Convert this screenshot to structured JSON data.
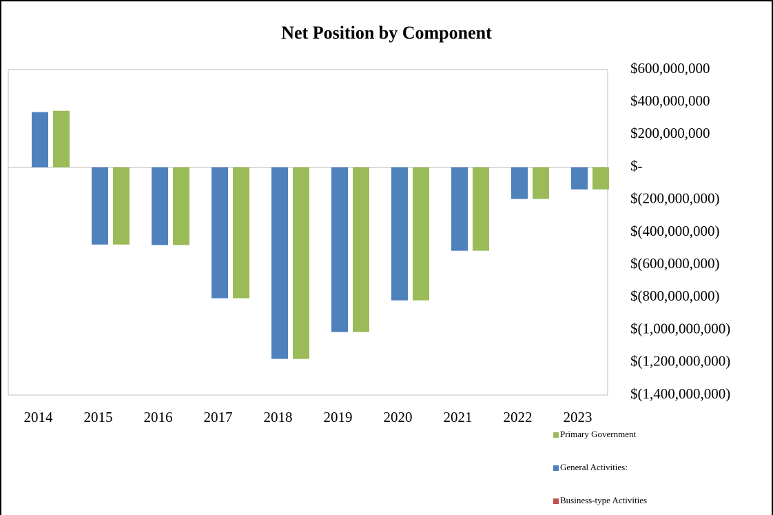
{
  "chart_data": {
    "type": "bar",
    "title": "Net Position by Component",
    "categories": [
      "2014",
      "2015",
      "2016",
      "2017",
      "2018",
      "2019",
      "2020",
      "2021",
      "2022",
      "2023"
    ],
    "series": [
      {
        "name": "Primary Government",
        "color": "#9bbb59",
        "values": [
          347000000,
          -475000000,
          -478000000,
          -805000000,
          -1178000000,
          -1013000000,
          -818000000,
          -513000000,
          -195000000,
          -136000000
        ]
      },
      {
        "name": "General Activities:",
        "color": "#4f81bd",
        "values": [
          339000000,
          -475000000,
          -478000000,
          -805000000,
          -1178000000,
          -1013000000,
          -818000000,
          -513000000,
          -195000000,
          -136000000
        ]
      },
      {
        "name": "Business-type Activities",
        "color": "#c0504d",
        "values": [
          0,
          0,
          0,
          0,
          0,
          0,
          0,
          0,
          0,
          0
        ]
      }
    ],
    "ylim": [
      -1400000000,
      600000000
    ],
    "yticks": [
      {
        "value": 600000000,
        "label": "$600,000,000"
      },
      {
        "value": 400000000,
        "label": "$400,000,000"
      },
      {
        "value": 200000000,
        "label": "$200,000,000"
      },
      {
        "value": 0,
        "label": "$-"
      },
      {
        "value": -200000000,
        "label": "$(200,000,000)"
      },
      {
        "value": -400000000,
        "label": "$(400,000,000)"
      },
      {
        "value": -600000000,
        "label": "$(600,000,000)"
      },
      {
        "value": -800000000,
        "label": "$(800,000,000)"
      },
      {
        "value": -1000000000,
        "label": "$(1,000,000,000)"
      },
      {
        "value": -1200000000,
        "label": "$(1,200,000,000)"
      },
      {
        "value": -1400000000,
        "label": "$(1,400,000,000)"
      }
    ],
    "grid": false
  }
}
